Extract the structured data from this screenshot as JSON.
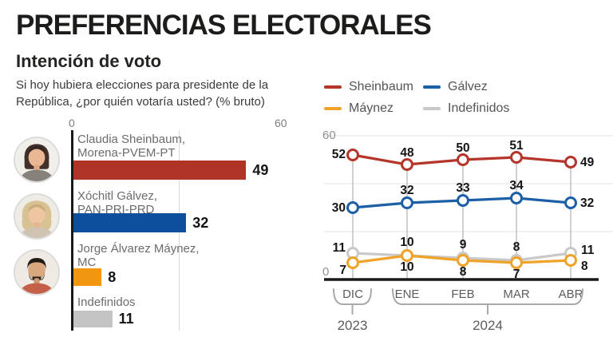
{
  "header": {
    "title": "PREFERENCIAS ELECTORALES",
    "subtitle": "Intención de voto",
    "question_line1": "Si hoy hubiera elecciones para presidente de la",
    "question_line2": "República, ¿por quién votaría usted? (% bruto)"
  },
  "colors": {
    "sheinbaum_bar": "#b03425",
    "galvez_bar": "#0d4f9c",
    "maynez_bar": "#f0960f",
    "indefinidos_bar": "#c3c3c3",
    "sheinbaum_line": "#b5352a",
    "galvez_line": "#1d5fa7",
    "maynez_line": "#efa32a",
    "indefinidos_line": "#c9c9c9",
    "axis_black": "#191919",
    "gridline_gray": "#e3e3e3",
    "dropline_gray": "#b0b0b0"
  },
  "legend": {
    "items": [
      {
        "label": "Sheinbaum",
        "color": "#b5352a"
      },
      {
        "label": "Gálvez",
        "color": "#1d5fa7"
      },
      {
        "label": "Máynez",
        "color": "#efa32a"
      },
      {
        "label": "Indefinidos",
        "color": "#c9c9c9"
      }
    ]
  },
  "chart_data": [
    {
      "type": "bar",
      "orientation": "horizontal",
      "title": "Intención de voto (% bruto)",
      "categories": [
        "Claudia Sheinbaum, Morena-PVEM-PT",
        "Xóchitl Gálvez, PAN-PRI-PRD",
        "Jorge Álvarez Máynez, MC",
        "Indefinidos"
      ],
      "values": [
        49,
        32,
        8,
        11
      ],
      "xlim": [
        0,
        60
      ],
      "axis_ticks": [
        "0",
        "60"
      ],
      "gridline_value": 30,
      "rows": [
        {
          "name": "Claudia Sheinbaum,",
          "party": "Morena-PVEM-PT",
          "value": "49",
          "num": 49,
          "color": "#b03425",
          "avatar": "sheinbaum-photo"
        },
        {
          "name": "Xóchitl Gálvez,",
          "party": "PAN-PRI-PRD",
          "value": "32",
          "num": 32,
          "color": "#0d4f9c",
          "avatar": "galvez-photo"
        },
        {
          "name": "Jorge Álvarez Máynez,",
          "party": "MC",
          "value": "8",
          "num": 8,
          "color": "#f0960f",
          "avatar": "maynez-photo"
        },
        {
          "name": "Indefinidos",
          "party": "",
          "value": "11",
          "num": 11,
          "color": "#c3c3c3",
          "avatar": ""
        }
      ]
    },
    {
      "type": "line",
      "x": [
        "DIC",
        "ENE",
        "FEB",
        "MAR",
        "ABR"
      ],
      "x_groups": [
        {
          "label": "2023",
          "first": 0,
          "last": 0
        },
        {
          "label": "2024",
          "first": 1,
          "last": 4
        }
      ],
      "ylim": [
        0,
        60
      ],
      "y_axis_labels": [
        "60",
        "0"
      ],
      "gridlines": [
        60,
        40,
        20
      ],
      "grid": true,
      "legend_position": "top",
      "series": [
        {
          "name": "Sheinbaum",
          "color": "#b5352a",
          "values": [
            52,
            48,
            50,
            51,
            49
          ]
        },
        {
          "name": "Gálvez",
          "color": "#1d5fa7",
          "values": [
            30,
            32,
            33,
            34,
            32
          ]
        },
        {
          "name": "Máynez",
          "color": "#efa32a",
          "values": [
            7,
            10,
            8,
            7,
            8
          ]
        },
        {
          "name": "Indefinidos",
          "color": "#c9c9c9",
          "values": [
            11,
            10,
            9,
            8,
            11
          ]
        }
      ]
    }
  ]
}
